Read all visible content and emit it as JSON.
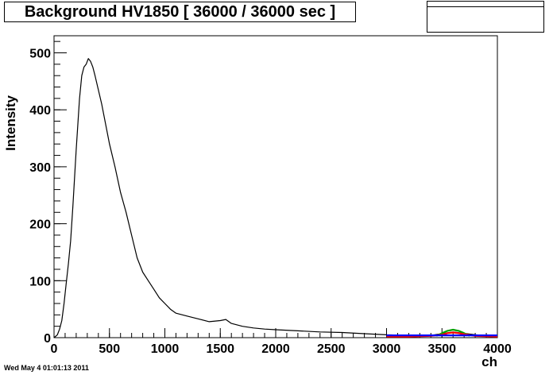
{
  "chart_data": {
    "type": "line",
    "title": "Background HV1850 [ 36000 / 36000 sec ]",
    "xlabel": "ch",
    "ylabel": "Intensity",
    "xlim": [
      0,
      4000
    ],
    "ylim": [
      0,
      530
    ],
    "xticks": [
      0,
      500,
      1000,
      1500,
      2000,
      2500,
      3000,
      3500,
      4000
    ],
    "yticks": [
      0,
      100,
      200,
      300,
      400,
      500
    ],
    "grid": false,
    "legend": "top-right",
    "series": [
      {
        "color": "#000000",
        "x": [
          0,
          30,
          50,
          70,
          90,
          110,
          130,
          150,
          170,
          200,
          230,
          250,
          270,
          290,
          300,
          310,
          330,
          350,
          370,
          400,
          430,
          450,
          480,
          500,
          550,
          600,
          650,
          700,
          750,
          800,
          850,
          900,
          950,
          1000,
          1050,
          1100,
          1200,
          1300,
          1400,
          1500,
          1550,
          1600,
          1700,
          1800,
          1900,
          2000,
          2200,
          2400,
          2600,
          2800,
          3000,
          3200,
          3400,
          3600,
          3800,
          4000
        ],
        "y": [
          0,
          5,
          15,
          30,
          60,
          95,
          130,
          170,
          230,
          330,
          420,
          460,
          475,
          480,
          485,
          490,
          485,
          475,
          460,
          435,
          410,
          390,
          360,
          340,
          300,
          255,
          220,
          180,
          140,
          115,
          100,
          85,
          70,
          60,
          50,
          43,
          38,
          33,
          28,
          30,
          32,
          25,
          20,
          17,
          15,
          14,
          12,
          10,
          9,
          7,
          5,
          4,
          4,
          10,
          5,
          2
        ]
      },
      {
        "color": "#00a000",
        "x": [
          3450,
          3500,
          3550,
          3600,
          3650,
          3700,
          3750
        ],
        "y": [
          3,
          8,
          12,
          14,
          12,
          8,
          3
        ]
      },
      {
        "color": "#ff0000",
        "x": [
          3000,
          3200,
          3400,
          3500,
          3550,
          3600,
          3650,
          3700,
          3800,
          4000
        ],
        "y": [
          2,
          2,
          3,
          5,
          8,
          9,
          8,
          6,
          3,
          2
        ]
      },
      {
        "color": "#0000ff",
        "x": [
          3000,
          3200,
          3400,
          3600,
          3800,
          4000
        ],
        "y": [
          4,
          4,
          4,
          4,
          4,
          4
        ]
      }
    ]
  },
  "footer": {
    "timestamp": "Wed May  4 01:01:13 2011"
  }
}
